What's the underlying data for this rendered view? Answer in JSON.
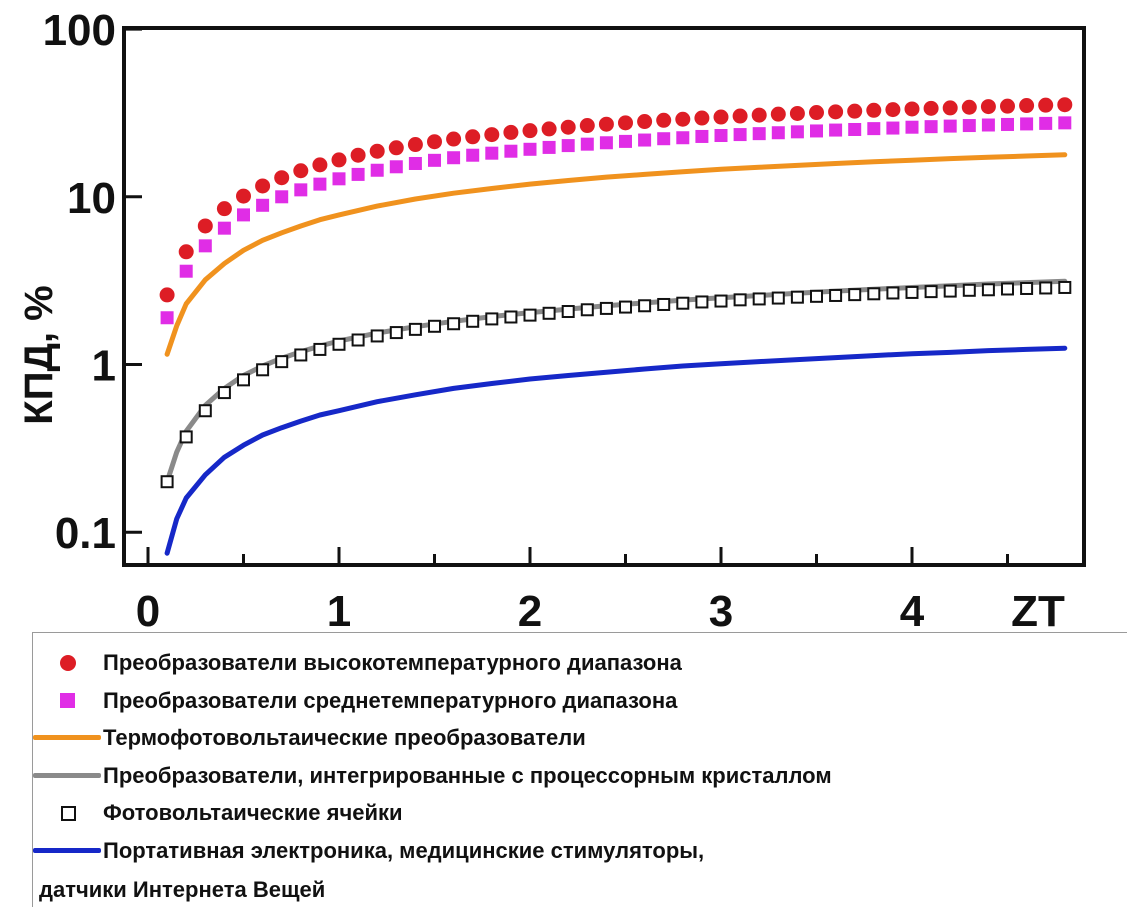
{
  "chart_data": {
    "type": "line",
    "ylabel": "КПД, %",
    "xlabel": "ZT",
    "yscale": "log",
    "xlim": [
      0,
      4.85
    ],
    "ylim": [
      0.065,
      110
    ],
    "x_ticks": [
      "0",
      "1",
      "2",
      "3",
      "4"
    ],
    "y_ticks": [
      "0.1",
      "1",
      "10",
      "100"
    ],
    "series": [
      {
        "name": "Преобразователи высокотемпературного диапазона",
        "marker": "circle",
        "color": "#dd1d25",
        "x": [
          0.1,
          0.2,
          0.3,
          0.4,
          0.5,
          0.6,
          0.7,
          0.8,
          0.9,
          1.0,
          1.1,
          1.2,
          1.3,
          1.4,
          1.5,
          1.6,
          1.7,
          1.8,
          1.9,
          2.0,
          2.1,
          2.2,
          2.3,
          2.4,
          2.5,
          2.6,
          2.7,
          2.8,
          2.9,
          3.0,
          3.1,
          3.2,
          3.3,
          3.4,
          3.5,
          3.6,
          3.7,
          3.8,
          3.9,
          4.0,
          4.1,
          4.2,
          4.3,
          4.4,
          4.5,
          4.6,
          4.7,
          4.8
        ],
        "y": [
          2.6,
          4.7,
          6.7,
          8.5,
          10.1,
          11.6,
          13.0,
          14.3,
          15.5,
          16.6,
          17.7,
          18.7,
          19.6,
          20.5,
          21.3,
          22.1,
          22.8,
          23.5,
          24.2,
          24.8,
          25.4,
          26.0,
          26.6,
          27.1,
          27.6,
          28.1,
          28.6,
          29.0,
          29.5,
          29.9,
          30.3,
          30.7,
          31.1,
          31.4,
          31.8,
          32.1,
          32.4,
          32.8,
          33.1,
          33.4,
          33.7,
          33.9,
          34.2,
          34.5,
          34.7,
          35.0,
          35.2,
          35.4
        ]
      },
      {
        "name": "Преобразователи среднетемпературного диапазона",
        "marker": "square",
        "color": "#e02de6",
        "x": [
          0.1,
          0.2,
          0.3,
          0.4,
          0.5,
          0.6,
          0.7,
          0.8,
          0.9,
          1.0,
          1.1,
          1.2,
          1.3,
          1.4,
          1.5,
          1.6,
          1.7,
          1.8,
          1.9,
          2.0,
          2.1,
          2.2,
          2.3,
          2.4,
          2.5,
          2.6,
          2.7,
          2.8,
          2.9,
          3.0,
          3.1,
          3.2,
          3.3,
          3.4,
          3.5,
          3.6,
          3.7,
          3.8,
          3.9,
          4.0,
          4.1,
          4.2,
          4.3,
          4.4,
          4.5,
          4.6,
          4.7,
          4.8
        ],
        "y": [
          1.9,
          3.6,
          5.1,
          6.5,
          7.8,
          8.9,
          10.0,
          11.0,
          11.9,
          12.8,
          13.6,
          14.4,
          15.1,
          15.8,
          16.5,
          17.1,
          17.7,
          18.2,
          18.7,
          19.2,
          19.7,
          20.2,
          20.6,
          21.0,
          21.4,
          21.8,
          22.2,
          22.5,
          22.9,
          23.2,
          23.5,
          23.8,
          24.1,
          24.4,
          24.7,
          25.0,
          25.2,
          25.5,
          25.7,
          26.0,
          26.2,
          26.4,
          26.6,
          26.8,
          27.0,
          27.2,
          27.4,
          27.6
        ]
      },
      {
        "name": "Термофотовольтаические преобразователи",
        "marker": "line",
        "color": "#f0921e",
        "x": [
          0.1,
          0.15,
          0.2,
          0.3,
          0.4,
          0.5,
          0.6,
          0.7,
          0.8,
          0.9,
          1.0,
          1.2,
          1.4,
          1.6,
          1.8,
          2.0,
          2.2,
          2.4,
          2.6,
          2.8,
          3.0,
          3.2,
          3.4,
          3.6,
          3.8,
          4.0,
          4.2,
          4.4,
          4.6,
          4.8
        ],
        "y": [
          1.15,
          1.7,
          2.3,
          3.2,
          4.0,
          4.8,
          5.5,
          6.1,
          6.7,
          7.3,
          7.8,
          8.8,
          9.7,
          10.5,
          11.2,
          11.9,
          12.5,
          13.1,
          13.6,
          14.1,
          14.6,
          15.0,
          15.4,
          15.8,
          16.2,
          16.5,
          16.9,
          17.2,
          17.5,
          17.8
        ]
      },
      {
        "name": "Преобразователи, интегрированные с процессорным кристаллом",
        "marker": "line",
        "color": "#8a8a8a",
        "x": [
          0.1,
          0.15,
          0.2,
          0.3,
          0.4,
          0.5,
          0.6,
          0.7,
          0.8,
          0.9,
          1.0,
          1.2,
          1.4,
          1.6,
          1.8,
          2.0,
          2.2,
          2.4,
          2.6,
          2.8,
          3.0,
          3.2,
          3.4,
          3.6,
          3.8,
          4.0,
          4.2,
          4.4,
          4.6,
          4.8
        ],
        "y": [
          0.2,
          0.3,
          0.4,
          0.57,
          0.72,
          0.86,
          0.98,
          1.09,
          1.19,
          1.29,
          1.38,
          1.54,
          1.68,
          1.81,
          1.93,
          2.04,
          2.14,
          2.24,
          2.33,
          2.42,
          2.5,
          2.58,
          2.66,
          2.74,
          2.81,
          2.88,
          2.95,
          3.02,
          3.08,
          3.14
        ]
      },
      {
        "name": "Фотовольтаические ячейки",
        "marker": "open-square",
        "color": "#111111",
        "x": [
          0.1,
          0.2,
          0.3,
          0.4,
          0.5,
          0.6,
          0.7,
          0.8,
          0.9,
          1.0,
          1.1,
          1.2,
          1.3,
          1.4,
          1.5,
          1.6,
          1.7,
          1.8,
          1.9,
          2.0,
          2.1,
          2.2,
          2.3,
          2.4,
          2.5,
          2.6,
          2.7,
          2.8,
          2.9,
          3.0,
          3.1,
          3.2,
          3.3,
          3.4,
          3.5,
          3.6,
          3.7,
          3.8,
          3.9,
          4.0,
          4.1,
          4.2,
          4.3,
          4.4,
          4.5,
          4.6,
          4.7,
          4.8
        ],
        "y": [
          0.2,
          0.37,
          0.53,
          0.68,
          0.81,
          0.93,
          1.04,
          1.14,
          1.23,
          1.32,
          1.4,
          1.48,
          1.55,
          1.62,
          1.69,
          1.75,
          1.81,
          1.87,
          1.92,
          1.97,
          2.02,
          2.07,
          2.12,
          2.16,
          2.2,
          2.24,
          2.28,
          2.32,
          2.36,
          2.39,
          2.43,
          2.46,
          2.49,
          2.52,
          2.55,
          2.58,
          2.61,
          2.64,
          2.67,
          2.69,
          2.72,
          2.74,
          2.77,
          2.79,
          2.82,
          2.84,
          2.86,
          2.88
        ]
      },
      {
        "name": "Портативная электроника, медицинские стимуляторы, датчики Интернета Вещей",
        "marker": "line",
        "color": "#1628c8",
        "x": [
          0.1,
          0.15,
          0.2,
          0.3,
          0.4,
          0.5,
          0.6,
          0.7,
          0.8,
          0.9,
          1.0,
          1.2,
          1.4,
          1.6,
          1.8,
          2.0,
          2.2,
          2.4,
          2.6,
          2.8,
          3.0,
          3.2,
          3.4,
          3.6,
          3.8,
          4.0,
          4.2,
          4.4,
          4.6,
          4.8
        ],
        "y": [
          0.075,
          0.12,
          0.16,
          0.22,
          0.28,
          0.33,
          0.38,
          0.42,
          0.46,
          0.5,
          0.53,
          0.6,
          0.66,
          0.72,
          0.77,
          0.82,
          0.86,
          0.9,
          0.94,
          0.98,
          1.01,
          1.04,
          1.07,
          1.1,
          1.13,
          1.16,
          1.18,
          1.21,
          1.23,
          1.25
        ]
      }
    ]
  },
  "legend": {
    "items": [
      {
        "label": "Преобразователи высокотемпературного диапазона",
        "color": "#dd1d25",
        "icon": "circle"
      },
      {
        "label": "Преобразователи среднетемпературного диапазона",
        "color": "#e02de6",
        "icon": "square"
      },
      {
        "label": "Термофотовольтаические преобразователи",
        "color": "#f0921e",
        "icon": "line"
      },
      {
        "label": "Преобразователи, интегрированные с процессорным кристаллом",
        "color": "#8a8a8a",
        "icon": "line"
      },
      {
        "label": "Фотовольтаические ячейки",
        "color": "#111111",
        "icon": "open-square"
      },
      {
        "label": "Портативная электроника, медицинские стимуляторы,",
        "color": "#1628c8",
        "icon": "line"
      }
    ],
    "continuation": "датчики Интернета Вещей"
  }
}
